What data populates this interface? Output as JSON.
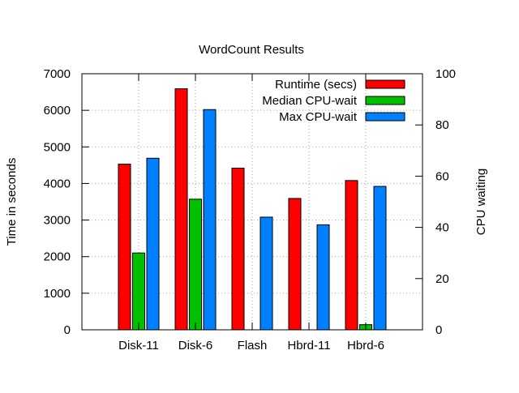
{
  "chart_data": {
    "type": "bar",
    "title": "WordCount Results",
    "ylabel": "Time in seconds",
    "y2label": "CPU waiting",
    "categories": [
      "Disk-11",
      "Disk-6",
      "Flash",
      "Hbrd-11",
      "Hbrd-6"
    ],
    "ylim": [
      0,
      7000
    ],
    "yticks": [
      0,
      1000,
      2000,
      3000,
      4000,
      5000,
      6000,
      7000
    ],
    "y2lim": [
      0,
      100
    ],
    "y2ticks": [
      0,
      20,
      40,
      60,
      80,
      100
    ],
    "grid": true,
    "legend_position": "top-right",
    "series": [
      {
        "name": "Runtime (secs)",
        "axis": "left",
        "color": "#ff0000",
        "values": [
          4530,
          6590,
          4420,
          3590,
          4080
        ]
      },
      {
        "name": "Median CPU-wait",
        "axis": "right",
        "color": "#00c000",
        "values": [
          30,
          51,
          0,
          0,
          2
        ]
      },
      {
        "name": "Max CPU-wait",
        "axis": "right",
        "color": "#0080ff",
        "values": [
          67,
          86,
          44,
          41,
          56
        ]
      }
    ]
  }
}
